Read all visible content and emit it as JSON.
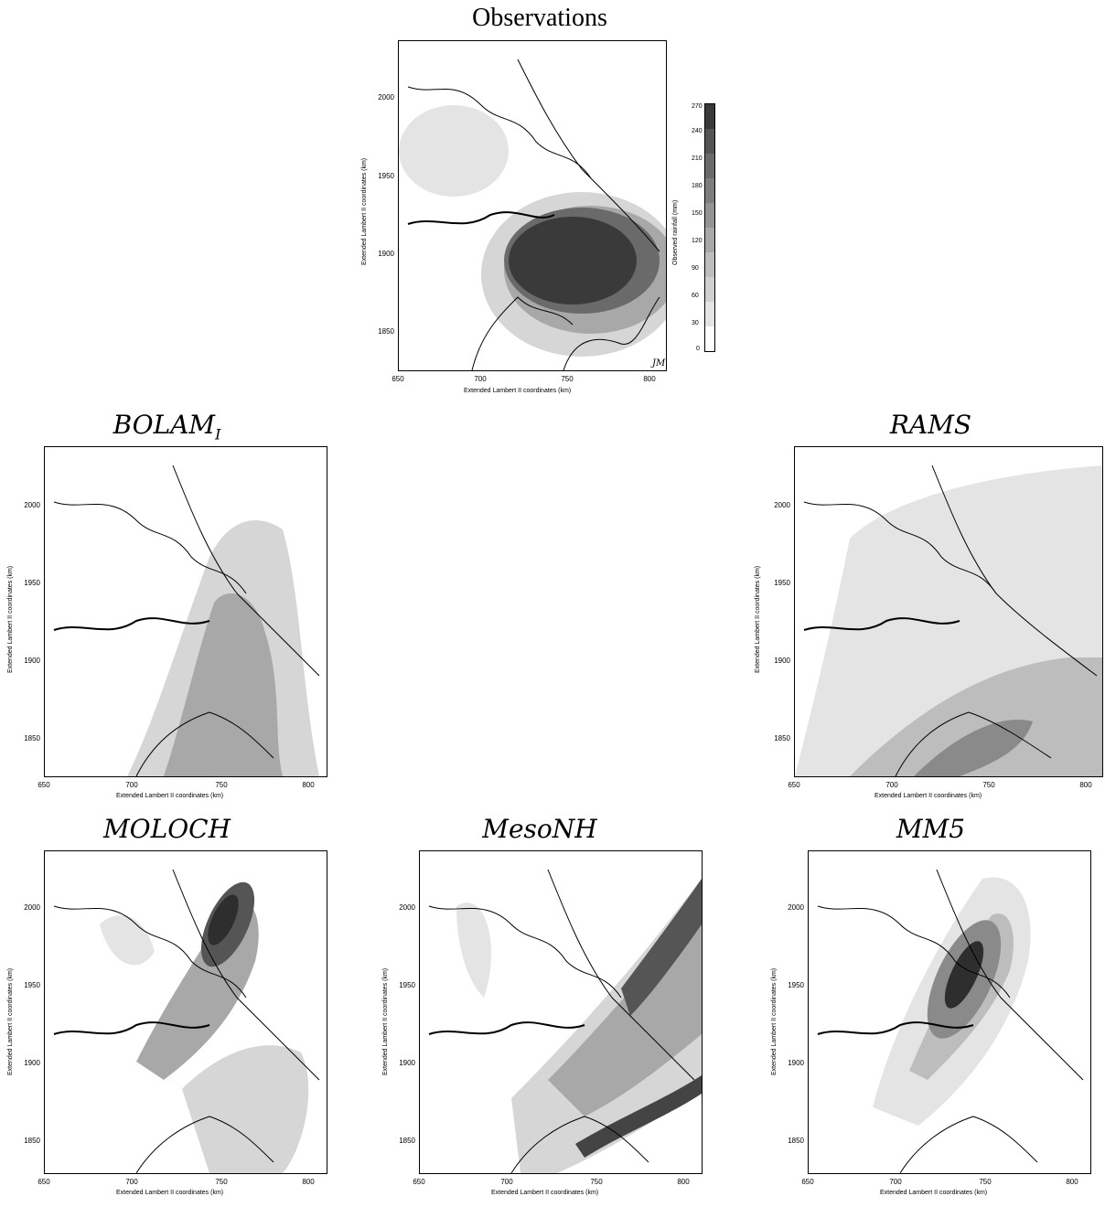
{
  "map_data": {
    "y_ticks": [
      "2000",
      "1950",
      "1900",
      "1850"
    ],
    "x_ticks": [
      "650",
      "700",
      "750",
      "800"
    ],
    "x_label": "Extended Lambert II coordinates (km)",
    "y_label": "Extended Lambert II coordinates (km)",
    "colorbar": {
      "label": "Observed rainfall (mm)",
      "ticks": [
        "270",
        "240",
        "210",
        "180",
        "150",
        "120",
        "90",
        "60",
        "30",
        "0"
      ]
    },
    "panels": [
      {
        "id": "observations",
        "title": "Observations",
        "sub": ""
      },
      {
        "id": "bolam",
        "title": "BOLAM",
        "sub": "I"
      },
      {
        "id": "rams",
        "title": "RAMS",
        "sub": ""
      },
      {
        "id": "moloch",
        "title": "MOLOCH",
        "sub": ""
      },
      {
        "id": "mesonh",
        "title": "MesoNH",
        "sub": ""
      },
      {
        "id": "mm5",
        "title": "MM5",
        "sub": ""
      }
    ],
    "signature": "JM"
  },
  "colors": {
    "shade_dark": "#3a3a3a",
    "shade_mid": "#8a8a8a",
    "shade_light": "#d6d6d6",
    "outline": "#000000"
  }
}
